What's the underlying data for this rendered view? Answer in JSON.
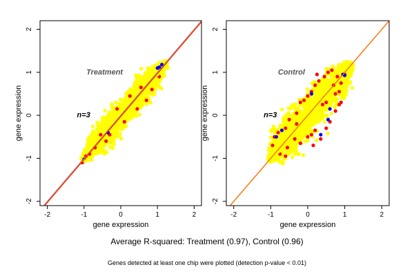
{
  "colors": {
    "background": "#ffffff",
    "point_yellow": "#ffff00",
    "point_red": "#ff0000",
    "point_blue": "#0000ff",
    "diagonal_red": "#ff0000",
    "diagonal_orange": "#ff9900",
    "diagonal_blue": "#3333ff",
    "annotation": "#555555"
  },
  "captions": {
    "summary": "Average R-squared: Treatment (0.97), Control (0.96)",
    "note": "Genes detected at least one chip were plotted (detection p-value < 0.01)"
  },
  "chart_data": [
    {
      "type": "scatter",
      "title": "Treatment",
      "annotation": "n=3",
      "xlabel": "gene expression",
      "ylabel": "gene expression",
      "xlim": [
        -2.2,
        2.2
      ],
      "ylim": [
        -2.1,
        2.2
      ],
      "xticks": [
        -2,
        -1,
        0,
        1,
        2
      ],
      "yticks": [
        -2,
        -1,
        0,
        1,
        2
      ],
      "grid": false,
      "reference_lines": [
        {
          "color": "#3333ff",
          "from": [
            -2.2,
            -2.2
          ],
          "to": [
            2.2,
            2.2
          ]
        },
        {
          "color": "#ff9900",
          "from": [
            -2.2,
            -2.21
          ],
          "to": [
            2.2,
            2.19
          ]
        },
        {
          "color": "#ff0000",
          "from": [
            -2.2,
            -2.23
          ],
          "to": [
            2.2,
            2.17
          ]
        }
      ],
      "cloud": {
        "x_range": [
          -1.05,
          1.25
        ],
        "spread": 0.18,
        "seed": 7
      },
      "series": [
        {
          "color": "#ffff00",
          "points": [
            [
              -1.0,
              -1.05
            ],
            [
              -0.8,
              -0.75
            ],
            [
              -0.6,
              -0.62
            ],
            [
              -0.4,
              -0.3
            ],
            [
              -0.2,
              -0.22
            ],
            [
              0.0,
              0.05
            ],
            [
              0.2,
              0.18
            ],
            [
              0.4,
              0.45
            ],
            [
              0.6,
              0.55
            ],
            [
              0.8,
              0.85
            ],
            [
              1.0,
              0.95
            ],
            [
              1.2,
              1.15
            ]
          ]
        },
        {
          "color": "#ff0000",
          "points": [
            [
              -1.05,
              -1.1
            ],
            [
              -0.95,
              -0.95
            ],
            [
              -0.85,
              -0.9
            ],
            [
              -0.7,
              -0.75
            ],
            [
              -0.4,
              -0.6
            ],
            [
              -0.3,
              -0.45
            ],
            [
              0.1,
              -0.15
            ],
            [
              0.25,
              0.45
            ],
            [
              0.45,
              0.15
            ],
            [
              0.55,
              0.65
            ],
            [
              0.7,
              0.35
            ],
            [
              0.85,
              0.6
            ],
            [
              1.05,
              0.9
            ],
            [
              -0.1,
              0.15
            ],
            [
              -0.55,
              -0.45
            ]
          ]
        },
        {
          "color": "#0000ff",
          "points": [
            [
              1.05,
              1.12
            ],
            [
              1.12,
              1.18
            ],
            [
              1.0,
              1.1
            ],
            [
              -0.35,
              -0.4
            ],
            [
              -1.0,
              -1.02
            ]
          ]
        }
      ]
    },
    {
      "type": "scatter",
      "title": "Control",
      "annotation": "n=3",
      "xlabel": "gene expression",
      "ylabel": "gene expression",
      "xlim": [
        -2.2,
        2.2
      ],
      "ylim": [
        -2.1,
        2.2
      ],
      "xticks": [
        -2,
        -1,
        0,
        1,
        2
      ],
      "yticks": [
        -2,
        -1,
        0,
        1,
        2
      ],
      "grid": false,
      "reference_lines": [
        {
          "color": "#ff0000",
          "from": [
            -2.2,
            -2.2
          ],
          "to": [
            2.2,
            2.2
          ]
        },
        {
          "color": "#ff9900",
          "from": [
            -2.2,
            -2.21
          ],
          "to": [
            2.2,
            2.19
          ]
        }
      ],
      "cloud": {
        "x_range": [
          -1.05,
          1.2
        ],
        "spread": 0.26,
        "seed": 11
      },
      "series": [
        {
          "color": "#ffff00",
          "points": [
            [
              -1.0,
              -1.0
            ],
            [
              -0.8,
              -0.85
            ],
            [
              -0.6,
              -0.55
            ],
            [
              -0.4,
              -0.45
            ],
            [
              -0.2,
              -0.15
            ],
            [
              0.0,
              0.0
            ],
            [
              0.2,
              0.25
            ],
            [
              0.4,
              0.35
            ],
            [
              0.6,
              0.65
            ],
            [
              0.8,
              0.75
            ],
            [
              1.0,
              1.05
            ],
            [
              1.15,
              1.1
            ]
          ]
        },
        {
          "color": "#ff0000",
          "points": [
            [
              -0.9,
              -0.5
            ],
            [
              -0.8,
              -0.4
            ],
            [
              -0.95,
              -0.7
            ],
            [
              -0.6,
              -0.3
            ],
            [
              -0.5,
              -0.1
            ],
            [
              -0.3,
              0.05
            ],
            [
              -0.2,
              0.3
            ],
            [
              0.0,
              0.45
            ],
            [
              0.1,
              0.55
            ],
            [
              0.2,
              0.7
            ],
            [
              0.3,
              0.8
            ],
            [
              0.25,
              0.95
            ],
            [
              0.45,
              0.9
            ],
            [
              0.55,
              1.0
            ],
            [
              0.65,
              1.05
            ],
            [
              0.7,
              0.7
            ],
            [
              0.75,
              0.5
            ],
            [
              0.85,
              0.55
            ],
            [
              0.9,
              0.75
            ],
            [
              0.2,
              -0.35
            ],
            [
              0.35,
              -0.55
            ],
            [
              0.5,
              -0.3
            ],
            [
              0.6,
              -0.15
            ],
            [
              0.75,
              0.1
            ],
            [
              0.85,
              0.25
            ],
            [
              0.0,
              -0.5
            ],
            [
              -0.2,
              -0.65
            ],
            [
              -0.35,
              -0.55
            ],
            [
              -0.55,
              -0.75
            ],
            [
              0.15,
              -0.7
            ],
            [
              -0.6,
              -0.95
            ],
            [
              -0.75,
              -0.9
            ],
            [
              0.5,
              0.3
            ],
            [
              -0.3,
              -0.2
            ],
            [
              0.4,
              0.25
            ],
            [
              1.0,
              0.95
            ],
            [
              0.8,
              0.9
            ],
            [
              -0.1,
              0.35
            ],
            [
              0.1,
              -0.45
            ],
            [
              0.9,
              0.3
            ]
          ]
        },
        {
          "color": "#0000ff",
          "points": [
            [
              0.95,
              0.95
            ],
            [
              1.0,
              0.93
            ],
            [
              -0.85,
              -0.5
            ],
            [
              0.55,
              -0.1
            ],
            [
              0.6,
              0.15
            ],
            [
              -0.7,
              -0.35
            ],
            [
              0.1,
              0.5
            ],
            [
              0.35,
              -0.45
            ]
          ]
        }
      ]
    }
  ]
}
